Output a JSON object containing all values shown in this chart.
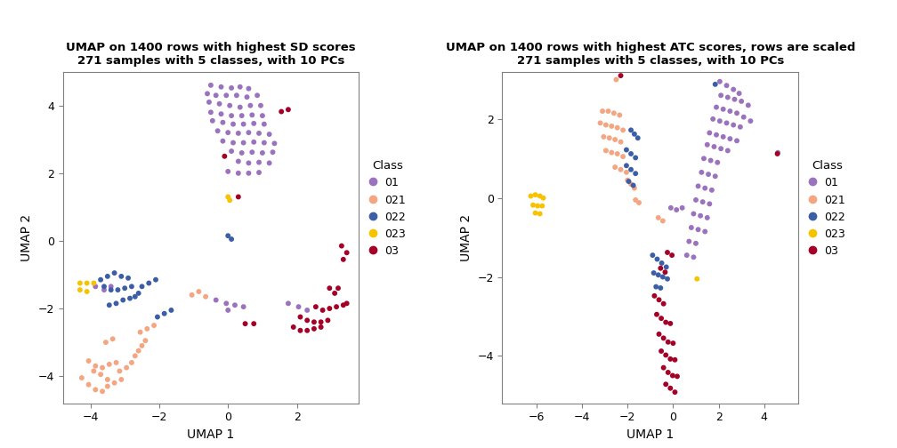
{
  "plot1": {
    "title1": "UMAP on 1400 rows with highest SD scores",
    "title2": "271 samples with 5 classes, with 10 PCs",
    "xlabel": "UMAP 1",
    "ylabel": "UMAP 2",
    "xlim": [
      -4.8,
      3.8
    ],
    "ylim": [
      -4.8,
      5.0
    ],
    "xticks": [
      -4,
      -2,
      0,
      2
    ],
    "yticks": [
      -4,
      -2,
      0,
      2,
      4
    ],
    "classes": {
      "01": {
        "color": "#9B72BE",
        "points": [
          [
            -0.5,
            4.6
          ],
          [
            -0.2,
            4.55
          ],
          [
            0.1,
            4.52
          ],
          [
            0.35,
            4.55
          ],
          [
            0.6,
            4.5
          ],
          [
            -0.6,
            4.35
          ],
          [
            -0.35,
            4.3
          ],
          [
            -0.05,
            4.3
          ],
          [
            0.25,
            4.3
          ],
          [
            0.55,
            4.25
          ],
          [
            0.85,
            4.3
          ],
          [
            -0.55,
            4.1
          ],
          [
            -0.25,
            4.05
          ],
          [
            0.05,
            4.0
          ],
          [
            0.35,
            3.95
          ],
          [
            0.65,
            4.0
          ],
          [
            0.95,
            4.0
          ],
          [
            -0.5,
            3.8
          ],
          [
            -0.2,
            3.75
          ],
          [
            0.1,
            3.7
          ],
          [
            0.4,
            3.7
          ],
          [
            0.7,
            3.72
          ],
          [
            1.0,
            3.7
          ],
          [
            -0.45,
            3.55
          ],
          [
            -0.15,
            3.5
          ],
          [
            0.15,
            3.45
          ],
          [
            0.45,
            3.45
          ],
          [
            0.75,
            3.47
          ],
          [
            1.05,
            3.45
          ],
          [
            -0.3,
            3.25
          ],
          [
            0.0,
            3.2
          ],
          [
            0.3,
            3.18
          ],
          [
            0.6,
            3.2
          ],
          [
            0.9,
            3.18
          ],
          [
            1.2,
            3.15
          ],
          [
            -0.15,
            2.95
          ],
          [
            0.15,
            2.9
          ],
          [
            0.45,
            2.9
          ],
          [
            0.75,
            2.92
          ],
          [
            1.05,
            2.9
          ],
          [
            1.35,
            2.88
          ],
          [
            0.1,
            2.65
          ],
          [
            0.4,
            2.6
          ],
          [
            0.7,
            2.62
          ],
          [
            1.0,
            2.6
          ],
          [
            1.3,
            2.62
          ],
          [
            0.3,
            2.35
          ],
          [
            0.6,
            2.3
          ],
          [
            0.9,
            2.32
          ],
          [
            1.2,
            2.3
          ],
          [
            0.0,
            2.05
          ],
          [
            0.3,
            2.0
          ],
          [
            0.6,
            2.0
          ],
          [
            0.9,
            2.02
          ],
          [
            -0.35,
            -1.75
          ],
          [
            -0.05,
            -1.85
          ],
          [
            0.2,
            -1.9
          ],
          [
            0.45,
            -1.95
          ],
          [
            0.0,
            -2.05
          ],
          [
            1.75,
            -1.85
          ],
          [
            2.05,
            -1.95
          ],
          [
            2.3,
            -2.05
          ],
          [
            -3.85,
            -1.35
          ],
          [
            -3.6,
            -1.45
          ],
          [
            -3.4,
            -1.35
          ]
        ]
      },
      "021": {
        "color": "#F4A582",
        "points": [
          [
            -4.25,
            -4.05
          ],
          [
            -4.05,
            -4.25
          ],
          [
            -3.85,
            -4.4
          ],
          [
            -3.65,
            -4.45
          ],
          [
            -3.5,
            -4.3
          ],
          [
            -3.9,
            -3.85
          ],
          [
            -3.7,
            -3.95
          ],
          [
            -3.5,
            -4.1
          ],
          [
            -3.3,
            -4.2
          ],
          [
            -3.1,
            -4.1
          ],
          [
            -4.05,
            -3.55
          ],
          [
            -3.85,
            -3.7
          ],
          [
            -3.65,
            -3.75
          ],
          [
            -3.45,
            -3.65
          ],
          [
            -3.25,
            -3.6
          ],
          [
            -3.15,
            -3.85
          ],
          [
            -2.95,
            -3.75
          ],
          [
            -2.8,
            -3.6
          ],
          [
            -2.7,
            -3.4
          ],
          [
            -2.6,
            -3.25
          ],
          [
            -2.5,
            -3.1
          ],
          [
            -2.4,
            -2.95
          ],
          [
            -2.55,
            -2.7
          ],
          [
            -2.35,
            -2.6
          ],
          [
            -2.15,
            -2.5
          ],
          [
            -3.55,
            -3.0
          ],
          [
            -3.35,
            -2.9
          ],
          [
            -1.05,
            -1.6
          ],
          [
            -0.85,
            -1.5
          ],
          [
            -0.65,
            -1.65
          ]
        ]
      },
      "022": {
        "color": "#3B5EA6",
        "points": [
          [
            -3.7,
            -1.15
          ],
          [
            -3.5,
            -1.05
          ],
          [
            -3.3,
            -0.95
          ],
          [
            -3.1,
            -1.05
          ],
          [
            -2.9,
            -1.1
          ],
          [
            -3.6,
            -1.35
          ],
          [
            -3.4,
            -1.45
          ],
          [
            -3.2,
            -1.45
          ],
          [
            -3.0,
            -1.4
          ],
          [
            -2.8,
            -1.35
          ],
          [
            -2.6,
            -1.55
          ],
          [
            -2.7,
            -1.65
          ],
          [
            -2.85,
            -1.7
          ],
          [
            -3.05,
            -1.75
          ],
          [
            -3.25,
            -1.85
          ],
          [
            -3.45,
            -1.9
          ],
          [
            -2.5,
            -1.35
          ],
          [
            -2.3,
            -1.25
          ],
          [
            -2.1,
            -1.15
          ],
          [
            -2.05,
            -2.25
          ],
          [
            -1.85,
            -2.15
          ],
          [
            -1.65,
            -2.05
          ],
          [
            0.0,
            0.15
          ],
          [
            0.1,
            0.05
          ]
        ]
      },
      "023": {
        "color": "#F6C300",
        "points": [
          [
            -4.3,
            -1.25
          ],
          [
            -4.1,
            -1.25
          ],
          [
            -3.9,
            -1.25
          ],
          [
            -4.3,
            -1.45
          ],
          [
            -4.1,
            -1.5
          ],
          [
            0.0,
            1.3
          ],
          [
            0.05,
            1.2
          ]
        ]
      },
      "03": {
        "color": "#A50026",
        "points": [
          [
            3.3,
            -0.15
          ],
          [
            3.45,
            -0.35
          ],
          [
            3.35,
            -0.55
          ],
          [
            2.95,
            -1.4
          ],
          [
            3.1,
            -1.55
          ],
          [
            3.2,
            -1.4
          ],
          [
            2.55,
            -1.95
          ],
          [
            2.75,
            -2.05
          ],
          [
            2.95,
            -2.0
          ],
          [
            3.15,
            -1.95
          ],
          [
            3.35,
            -1.9
          ],
          [
            3.45,
            -1.85
          ],
          [
            2.1,
            -2.25
          ],
          [
            2.3,
            -2.35
          ],
          [
            2.5,
            -2.4
          ],
          [
            2.7,
            -2.4
          ],
          [
            2.9,
            -2.35
          ],
          [
            1.9,
            -2.55
          ],
          [
            2.1,
            -2.65
          ],
          [
            2.3,
            -2.65
          ],
          [
            2.5,
            -2.6
          ],
          [
            2.7,
            -2.55
          ],
          [
            0.5,
            -2.45
          ],
          [
            0.75,
            -2.45
          ],
          [
            1.55,
            3.82
          ],
          [
            1.75,
            3.88
          ],
          [
            0.3,
            1.3
          ],
          [
            -0.1,
            2.5
          ]
        ]
      }
    }
  },
  "plot2": {
    "title1": "UMAP on 1400 rows with highest ATC scores, rows are scaled",
    "title2": "271 samples with 5 classes, with 10 PCs",
    "xlabel": "UMAP 1",
    "ylabel": "UMAP 2",
    "xlim": [
      -7.5,
      5.5
    ],
    "ylim": [
      -5.2,
      3.2
    ],
    "xticks": [
      -6,
      -4,
      -2,
      0,
      2,
      4
    ],
    "yticks": [
      -4,
      -2,
      0,
      2
    ],
    "classes": {
      "01": {
        "color": "#9B72BE",
        "points": [
          [
            2.05,
            2.95
          ],
          [
            2.35,
            2.85
          ],
          [
            2.65,
            2.75
          ],
          [
            2.9,
            2.65
          ],
          [
            2.1,
            2.6
          ],
          [
            2.4,
            2.55
          ],
          [
            2.7,
            2.5
          ],
          [
            3.0,
            2.45
          ],
          [
            3.3,
            2.35
          ],
          [
            1.9,
            2.3
          ],
          [
            2.2,
            2.25
          ],
          [
            2.5,
            2.2
          ],
          [
            2.8,
            2.15
          ],
          [
            3.1,
            2.05
          ],
          [
            3.4,
            1.95
          ],
          [
            1.75,
            2.0
          ],
          [
            2.05,
            1.95
          ],
          [
            2.35,
            1.9
          ],
          [
            2.65,
            1.85
          ],
          [
            2.95,
            1.8
          ],
          [
            1.6,
            1.65
          ],
          [
            1.9,
            1.6
          ],
          [
            2.2,
            1.55
          ],
          [
            2.5,
            1.5
          ],
          [
            2.8,
            1.45
          ],
          [
            1.5,
            1.35
          ],
          [
            1.8,
            1.3
          ],
          [
            2.1,
            1.25
          ],
          [
            2.4,
            1.2
          ],
          [
            1.35,
            1.0
          ],
          [
            1.65,
            0.95
          ],
          [
            1.95,
            0.9
          ],
          [
            1.25,
            0.65
          ],
          [
            1.55,
            0.6
          ],
          [
            1.85,
            0.55
          ],
          [
            1.1,
            0.3
          ],
          [
            1.4,
            0.25
          ],
          [
            1.7,
            0.2
          ],
          [
            1.0,
            -0.05
          ],
          [
            1.3,
            -0.1
          ],
          [
            1.6,
            -0.15
          ],
          [
            0.9,
            -0.4
          ],
          [
            1.2,
            -0.45
          ],
          [
            1.5,
            -0.5
          ],
          [
            0.8,
            -0.75
          ],
          [
            1.1,
            -0.8
          ],
          [
            1.4,
            -0.85
          ],
          [
            0.7,
            -1.1
          ],
          [
            1.0,
            -1.15
          ],
          [
            0.6,
            -1.45
          ],
          [
            0.9,
            -1.5
          ],
          [
            -0.1,
            -0.25
          ],
          [
            0.15,
            -0.3
          ],
          [
            0.4,
            -0.25
          ],
          [
            4.6,
            1.15
          ]
        ]
      },
      "021": {
        "color": "#F4A582",
        "points": [
          [
            -2.5,
            3.0
          ],
          [
            -3.1,
            2.2
          ],
          [
            -2.85,
            2.2
          ],
          [
            -2.6,
            2.15
          ],
          [
            -2.35,
            2.1
          ],
          [
            -3.2,
            1.9
          ],
          [
            -2.95,
            1.85
          ],
          [
            -2.7,
            1.82
          ],
          [
            -2.45,
            1.78
          ],
          [
            -2.2,
            1.72
          ],
          [
            -3.05,
            1.55
          ],
          [
            -2.8,
            1.52
          ],
          [
            -2.55,
            1.48
          ],
          [
            -2.3,
            1.42
          ],
          [
            -2.95,
            1.2
          ],
          [
            -2.7,
            1.15
          ],
          [
            -2.45,
            1.12
          ],
          [
            -2.2,
            1.05
          ],
          [
            -2.55,
            0.78
          ],
          [
            -2.3,
            0.72
          ],
          [
            -2.05,
            0.65
          ],
          [
            -2.0,
            0.45
          ],
          [
            -1.85,
            0.35
          ],
          [
            -1.7,
            0.25
          ],
          [
            -1.65,
            -0.05
          ],
          [
            -1.5,
            -0.12
          ],
          [
            -0.65,
            -0.5
          ],
          [
            -0.45,
            -0.58
          ]
        ]
      },
      "022": {
        "color": "#3B5EA6",
        "points": [
          [
            -1.85,
            1.72
          ],
          [
            -1.7,
            1.62
          ],
          [
            -1.55,
            1.52
          ],
          [
            -2.05,
            1.22
          ],
          [
            -1.85,
            1.12
          ],
          [
            -1.65,
            1.02
          ],
          [
            -2.05,
            0.82
          ],
          [
            -1.85,
            0.72
          ],
          [
            -1.65,
            0.62
          ],
          [
            -1.95,
            0.42
          ],
          [
            -1.75,
            0.32
          ],
          [
            -0.9,
            -1.45
          ],
          [
            -0.7,
            -1.55
          ],
          [
            -0.5,
            -1.65
          ],
          [
            -0.3,
            -1.75
          ],
          [
            -0.85,
            -1.9
          ],
          [
            -0.65,
            -1.95
          ],
          [
            -0.45,
            -2.0
          ],
          [
            -0.25,
            -2.05
          ],
          [
            -0.75,
            -2.25
          ],
          [
            -0.55,
            -2.28
          ],
          [
            1.85,
            2.88
          ]
        ]
      },
      "023": {
        "color": "#F6C300",
        "points": [
          [
            -6.25,
            0.05
          ],
          [
            -6.05,
            0.08
          ],
          [
            -5.85,
            0.05
          ],
          [
            -5.7,
            0.0
          ],
          [
            -6.15,
            -0.18
          ],
          [
            -5.95,
            -0.2
          ],
          [
            -5.75,
            -0.2
          ],
          [
            -6.05,
            -0.38
          ],
          [
            -5.85,
            -0.4
          ],
          [
            1.05,
            -2.05
          ]
        ]
      },
      "03": {
        "color": "#A50026",
        "points": [
          [
            -2.3,
            3.1
          ],
          [
            -0.25,
            -1.38
          ],
          [
            -0.05,
            -1.45
          ],
          [
            -0.55,
            -1.78
          ],
          [
            -0.35,
            -1.88
          ],
          [
            -0.82,
            -2.48
          ],
          [
            -0.62,
            -2.58
          ],
          [
            -0.42,
            -2.68
          ],
          [
            -0.72,
            -2.95
          ],
          [
            -0.52,
            -3.05
          ],
          [
            -0.32,
            -3.15
          ],
          [
            -0.12,
            -3.18
          ],
          [
            -0.62,
            -3.45
          ],
          [
            -0.42,
            -3.55
          ],
          [
            -0.22,
            -3.65
          ],
          [
            0.0,
            -3.68
          ],
          [
            -0.52,
            -3.88
          ],
          [
            -0.32,
            -3.98
          ],
          [
            -0.12,
            -4.08
          ],
          [
            0.08,
            -4.1
          ],
          [
            -0.42,
            -4.3
          ],
          [
            -0.22,
            -4.42
          ],
          [
            -0.02,
            -4.5
          ],
          [
            0.18,
            -4.52
          ],
          [
            -0.32,
            -4.72
          ],
          [
            -0.12,
            -4.82
          ],
          [
            0.08,
            -4.92
          ],
          [
            4.58,
            1.12
          ]
        ]
      }
    }
  },
  "legend": {
    "classes": [
      "01",
      "021",
      "022",
      "023",
      "03"
    ],
    "colors": [
      "#9B72BE",
      "#F4A582",
      "#3B5EA6",
      "#F6C300",
      "#A50026"
    ],
    "title": "Class"
  },
  "marker_size": 18,
  "bg_color": "#FFFFFF",
  "panel_bg": "#FFFFFF",
  "border_color": "#808080"
}
